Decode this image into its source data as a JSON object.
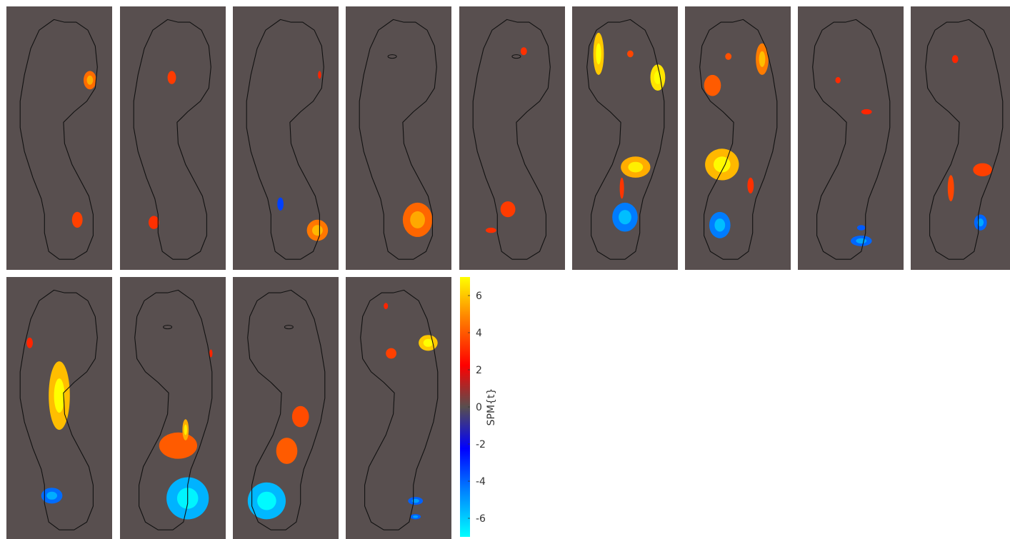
{
  "chart_data": {
    "type": "heatmap",
    "layout": "small multiples, 2 rows",
    "panel_count": 13,
    "background_color": "#584f4f",
    "outline_color": "#111111",
    "colormap": [
      "#00ffff",
      "#0080ff",
      "#0000ff",
      "#584f4f",
      "#ff0000",
      "#ff8000",
      "#ffff00"
    ],
    "colorbar": {
      "label": "SPM{t}",
      "range": [
        -7,
        7
      ],
      "ticks": [
        -6,
        -4,
        -2,
        0,
        2,
        4,
        6
      ],
      "tick_labels": [
        "-6",
        "-4",
        "-2",
        "0",
        "2",
        "4",
        "6"
      ]
    },
    "panels": [
      {
        "foot": "right",
        "clusters": [
          {
            "fx": 0.79,
            "fy": 0.28,
            "rx": 0.06,
            "ry": 0.035,
            "t": 4.3
          },
          {
            "fx": 0.67,
            "fy": 0.81,
            "rx": 0.05,
            "ry": 0.03,
            "t": 3.5
          }
        ]
      },
      {
        "foot": "right",
        "clusters": [
          {
            "fx": 0.49,
            "fy": 0.27,
            "rx": 0.04,
            "ry": 0.025,
            "t": 3.4
          },
          {
            "fx": 0.32,
            "fy": 0.82,
            "rx": 0.05,
            "ry": 0.025,
            "t": 3.2
          }
        ]
      },
      {
        "foot": "right",
        "clusters": [
          {
            "fx": 0.8,
            "fy": 0.85,
            "rx": 0.1,
            "ry": 0.04,
            "t": 4.5
          },
          {
            "fx": 0.45,
            "fy": 0.75,
            "rx": 0.03,
            "ry": 0.025,
            "t": -3.5
          },
          {
            "fx": 0.82,
            "fy": 0.26,
            "rx": 0.015,
            "ry": 0.015,
            "t": 3.0
          }
        ]
      },
      {
        "foot": "right",
        "hole": {
          "fx": 0.44,
          "fy": 0.19
        },
        "clusters": [
          {
            "fx": 0.68,
            "fy": 0.81,
            "rx": 0.14,
            "ry": 0.065,
            "t": 4.2
          }
        ]
      },
      {
        "foot": "right",
        "hole": {
          "fx": 0.54,
          "fy": 0.19
        },
        "clusters": [
          {
            "fx": 0.61,
            "fy": 0.17,
            "rx": 0.03,
            "ry": 0.015,
            "t": 3.2
          },
          {
            "fx": 0.46,
            "fy": 0.77,
            "rx": 0.07,
            "ry": 0.03,
            "t": 3.4
          },
          {
            "fx": 0.3,
            "fy": 0.85,
            "rx": 0.05,
            "ry": 0.01,
            "t": 3.2
          }
        ]
      },
      {
        "foot": "left",
        "clusters": [
          {
            "fx": 0.81,
            "fy": 0.27,
            "rx": 0.07,
            "ry": 0.05,
            "t": 6.5
          },
          {
            "fx": 0.55,
            "fy": 0.18,
            "rx": 0.03,
            "ry": 0.013,
            "t": 3.6
          },
          {
            "fx": 0.25,
            "fy": 0.18,
            "rx": 0.05,
            "ry": 0.08,
            "t": 6.0
          },
          {
            "fx": 0.5,
            "fy": 0.8,
            "rx": 0.12,
            "ry": 0.055,
            "t": -4.6
          },
          {
            "fx": 0.6,
            "fy": 0.61,
            "rx": 0.14,
            "ry": 0.04,
            "t": 5.5
          },
          {
            "fx": 0.47,
            "fy": 0.69,
            "rx": 0.02,
            "ry": 0.04,
            "t": 3.3
          }
        ]
      },
      {
        "foot": "left",
        "clusters": [
          {
            "fx": 0.26,
            "fy": 0.3,
            "rx": 0.08,
            "ry": 0.04,
            "t": 4.0
          },
          {
            "fx": 0.41,
            "fy": 0.19,
            "rx": 0.03,
            "ry": 0.013,
            "t": 3.8
          },
          {
            "fx": 0.73,
            "fy": 0.2,
            "rx": 0.06,
            "ry": 0.06,
            "t": 4.6
          },
          {
            "fx": 0.35,
            "fy": 0.6,
            "rx": 0.16,
            "ry": 0.06,
            "t": 5.7
          },
          {
            "fx": 0.33,
            "fy": 0.83,
            "rx": 0.1,
            "ry": 0.05,
            "t": -4.6
          },
          {
            "fx": 0.62,
            "fy": 0.68,
            "rx": 0.03,
            "ry": 0.03,
            "t": 3.2
          }
        ]
      },
      {
        "foot": "left",
        "clusters": [
          {
            "fx": 0.38,
            "fy": 0.28,
            "rx": 0.025,
            "ry": 0.012,
            "t": 3.1
          },
          {
            "fx": 0.6,
            "fy": 0.89,
            "rx": 0.1,
            "ry": 0.02,
            "t": -4.2
          },
          {
            "fx": 0.6,
            "fy": 0.84,
            "rx": 0.04,
            "ry": 0.01,
            "t": -4.0
          },
          {
            "fx": 0.65,
            "fy": 0.4,
            "rx": 0.05,
            "ry": 0.01,
            "t": 3.0
          }
        ]
      },
      {
        "foot": "left",
        "clusters": [
          {
            "fx": 0.42,
            "fy": 0.2,
            "rx": 0.03,
            "ry": 0.015,
            "t": 3.0
          },
          {
            "fx": 0.68,
            "fy": 0.62,
            "rx": 0.09,
            "ry": 0.025,
            "t": 3.5
          },
          {
            "fx": 0.66,
            "fy": 0.82,
            "rx": 0.06,
            "ry": 0.03,
            "t": -4.2
          },
          {
            "fx": 0.38,
            "fy": 0.69,
            "rx": 0.03,
            "ry": 0.05,
            "t": 3.6
          }
        ]
      },
      {
        "foot": "right",
        "clusters": [
          {
            "fx": 0.5,
            "fy": 0.45,
            "rx": 0.1,
            "ry": 0.13,
            "t": 5.8
          },
          {
            "fx": 0.22,
            "fy": 0.25,
            "rx": 0.03,
            "ry": 0.02,
            "t": 3.0
          },
          {
            "fx": 0.43,
            "fy": 0.83,
            "rx": 0.1,
            "ry": 0.03,
            "t": -4.3
          }
        ]
      },
      {
        "foot": "left",
        "hole": {
          "fx": 0.45,
          "fy": 0.19
        },
        "clusters": [
          {
            "fx": 0.55,
            "fy": 0.64,
            "rx": 0.18,
            "ry": 0.05,
            "t": 4.0
          },
          {
            "fx": 0.62,
            "fy": 0.58,
            "rx": 0.03,
            "ry": 0.04,
            "t": 5.5
          },
          {
            "fx": 0.64,
            "fy": 0.84,
            "rx": 0.2,
            "ry": 0.08,
            "t": -5.6
          },
          {
            "fx": 0.86,
            "fy": 0.29,
            "rx": 0.015,
            "ry": 0.015,
            "t": 3.0
          }
        ]
      },
      {
        "foot": "left",
        "hole": {
          "fx": 0.53,
          "fy": 0.19
        },
        "clusters": [
          {
            "fx": 0.64,
            "fy": 0.53,
            "rx": 0.08,
            "ry": 0.04,
            "t": 3.7
          },
          {
            "fx": 0.51,
            "fy": 0.66,
            "rx": 0.1,
            "ry": 0.05,
            "t": 4.0
          },
          {
            "fx": 0.32,
            "fy": 0.85,
            "rx": 0.18,
            "ry": 0.07,
            "t": -5.7
          }
        ]
      },
      {
        "foot": "left",
        "clusters": [
          {
            "fx": 0.78,
            "fy": 0.25,
            "rx": 0.09,
            "ry": 0.03,
            "t": 6.0
          },
          {
            "fx": 0.43,
            "fy": 0.29,
            "rx": 0.05,
            "ry": 0.02,
            "t": 3.5
          },
          {
            "fx": 0.38,
            "fy": 0.11,
            "rx": 0.02,
            "ry": 0.012,
            "t": 3.0
          },
          {
            "fx": 0.66,
            "fy": 0.85,
            "rx": 0.07,
            "ry": 0.015,
            "t": -4.1
          },
          {
            "fx": 0.66,
            "fy": 0.91,
            "rx": 0.05,
            "ry": 0.01,
            "t": -4.1
          }
        ]
      }
    ]
  }
}
